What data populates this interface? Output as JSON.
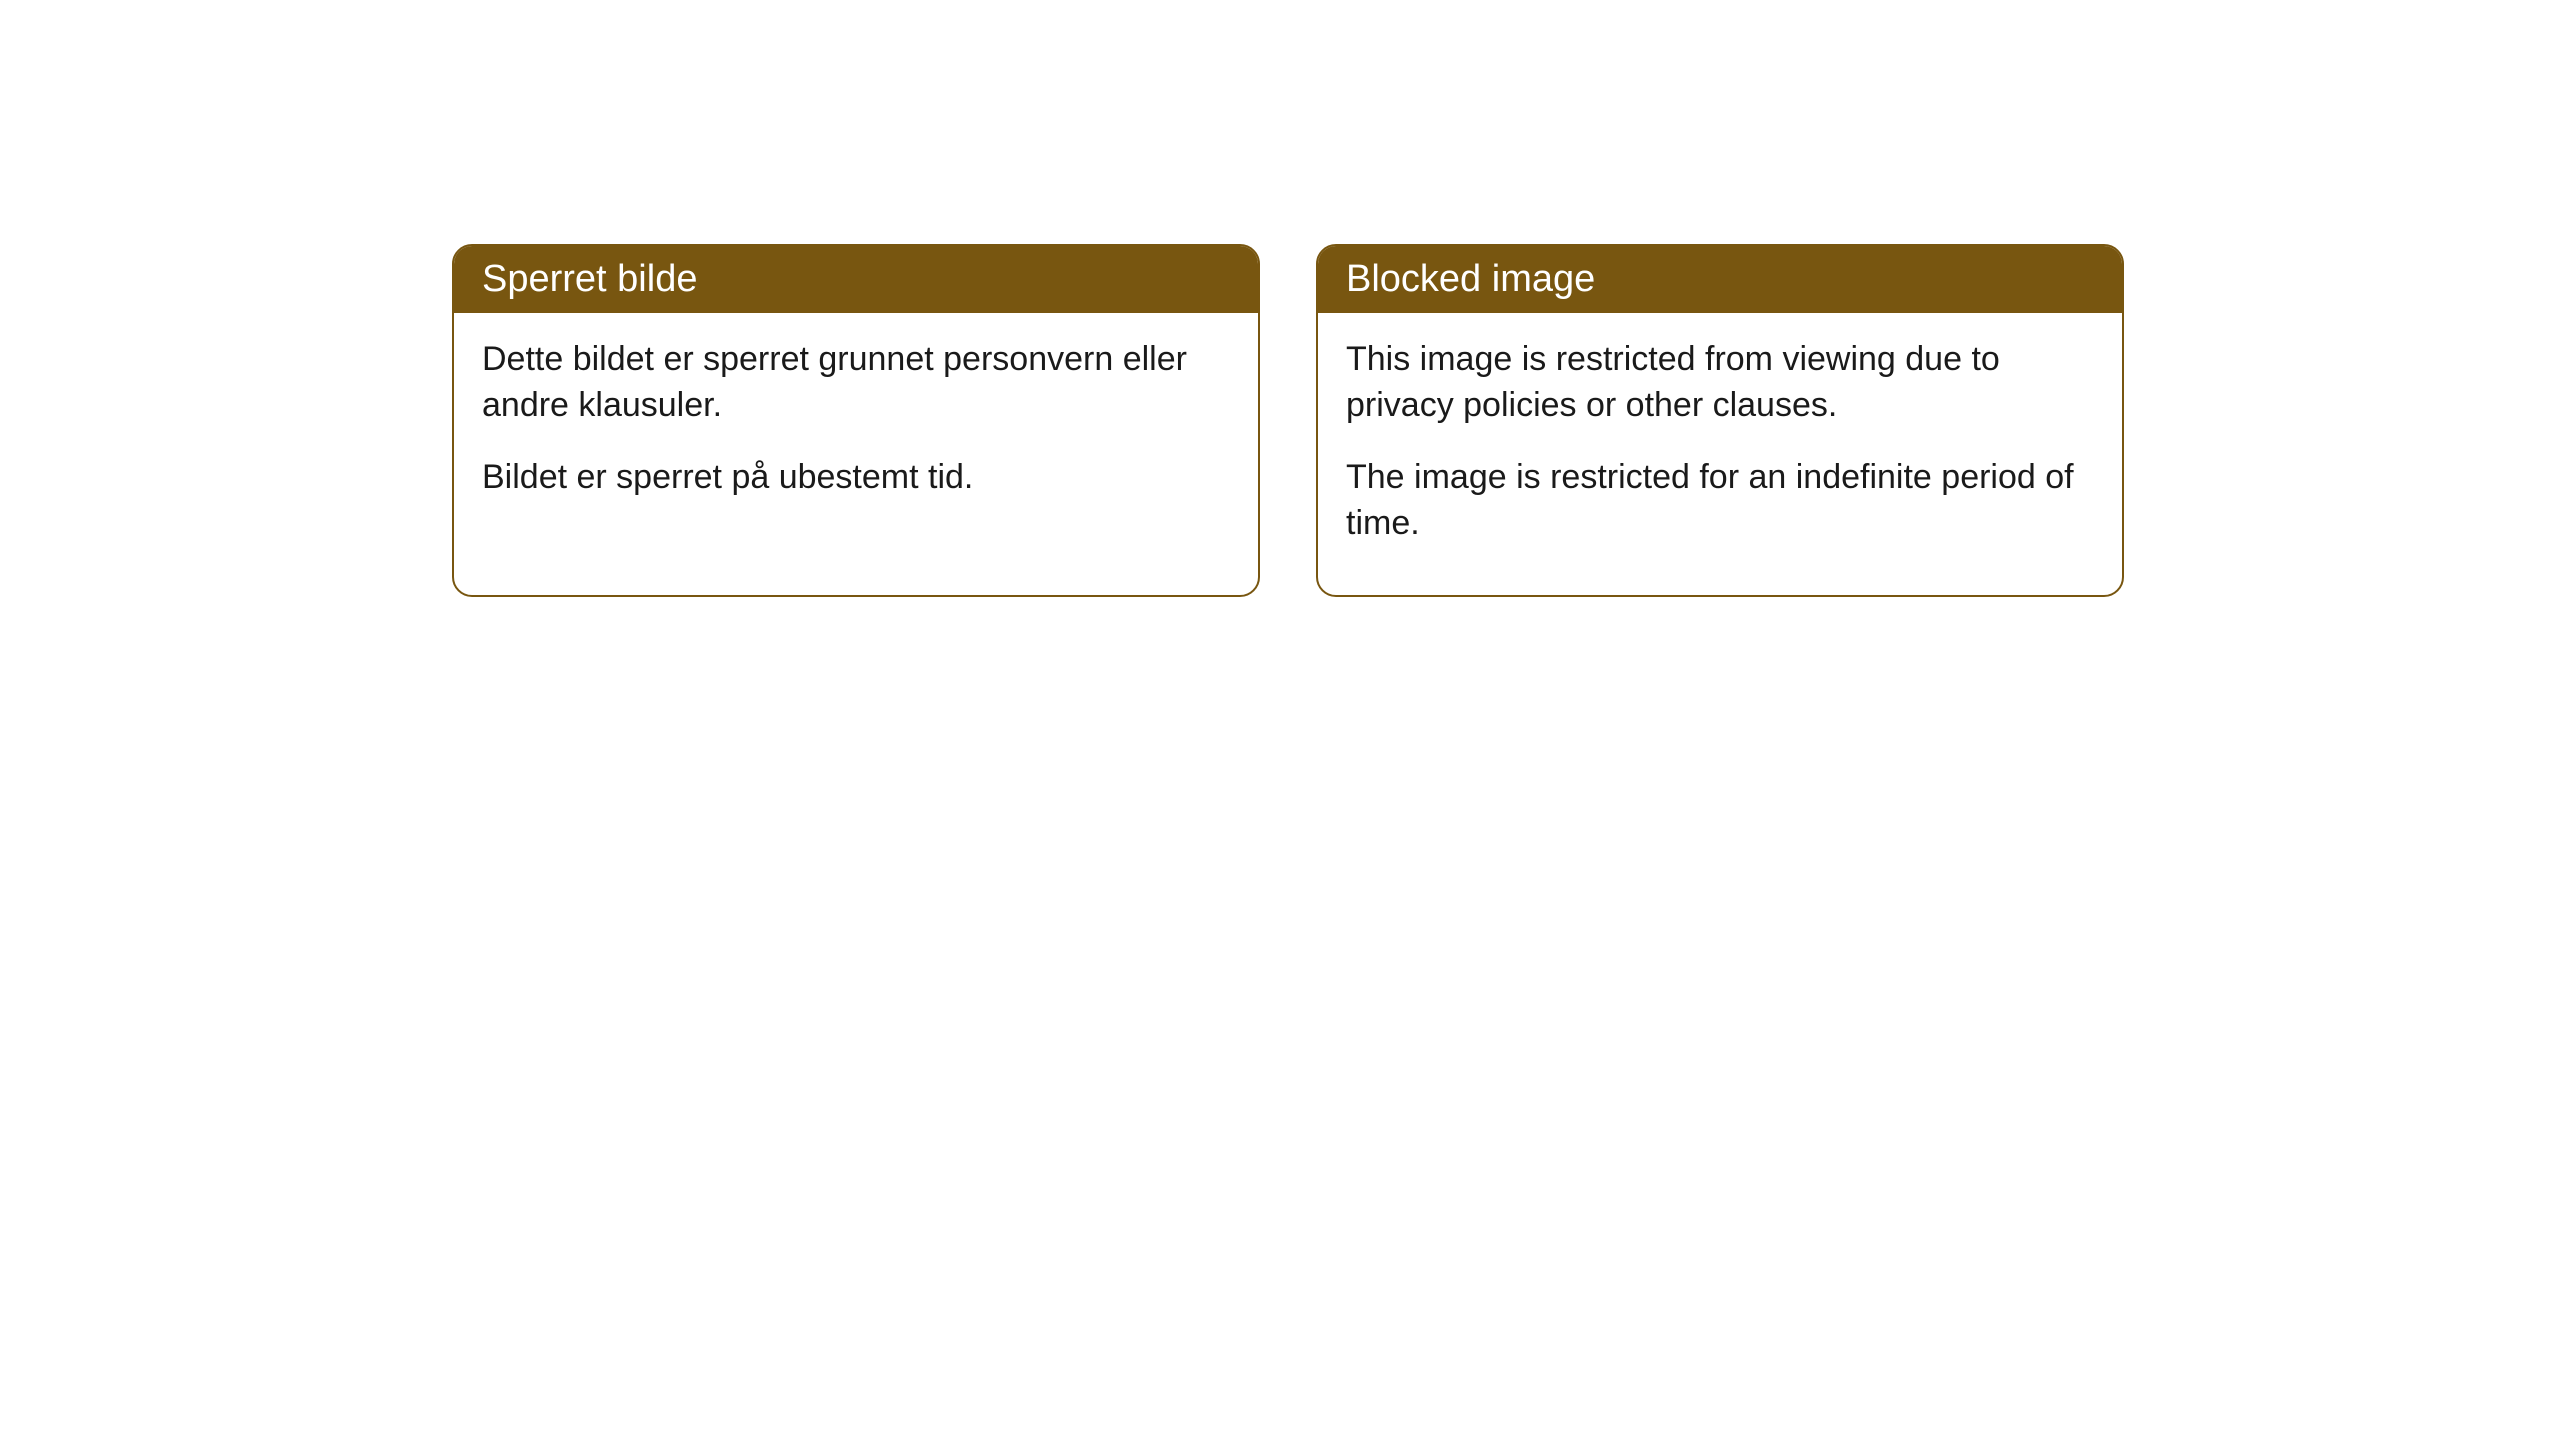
{
  "cards": [
    {
      "title": "Sperret bilde",
      "paragraph1": "Dette bildet er sperret grunnet personvern eller andre klausuler.",
      "paragraph2": "Bildet er sperret på ubestemt tid."
    },
    {
      "title": "Blocked image",
      "paragraph1": "This image is restricted from viewing due to privacy policies or other clauses.",
      "paragraph2": "The image is restricted for an indefinite period of time."
    }
  ],
  "styling": {
    "header_bg_color": "#785610",
    "header_text_color": "#ffffff",
    "border_color": "#785610",
    "body_text_color": "#1a1a1a",
    "card_bg_color": "#ffffff",
    "page_bg_color": "#ffffff",
    "border_radius": 20,
    "title_fontsize": 38,
    "body_fontsize": 34
  }
}
